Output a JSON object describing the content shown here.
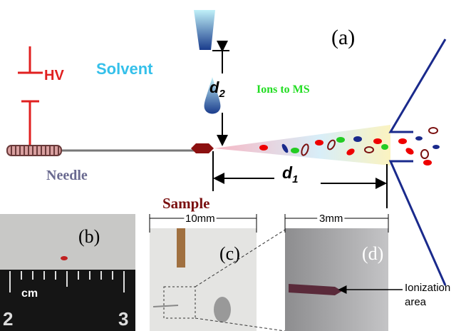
{
  "panel_a": {
    "label": "(a)",
    "hv": "HV",
    "solvent": "Solvent",
    "d2": {
      "main": "d",
      "sub": "2"
    },
    "ions": "Ions to MS",
    "needle": "Needle",
    "d1": {
      "main": "d",
      "sub": "1"
    },
    "sample": "Sample"
  },
  "panel_b": {
    "label": "(b)",
    "unit": "cm",
    "ruler_numbers": [
      "2",
      "3"
    ]
  },
  "panel_c": {
    "label": "(c)",
    "scale": "10mm"
  },
  "panel_d": {
    "label": "(d)",
    "scale": "3mm",
    "annotation": [
      "Ionization",
      "area"
    ]
  }
}
